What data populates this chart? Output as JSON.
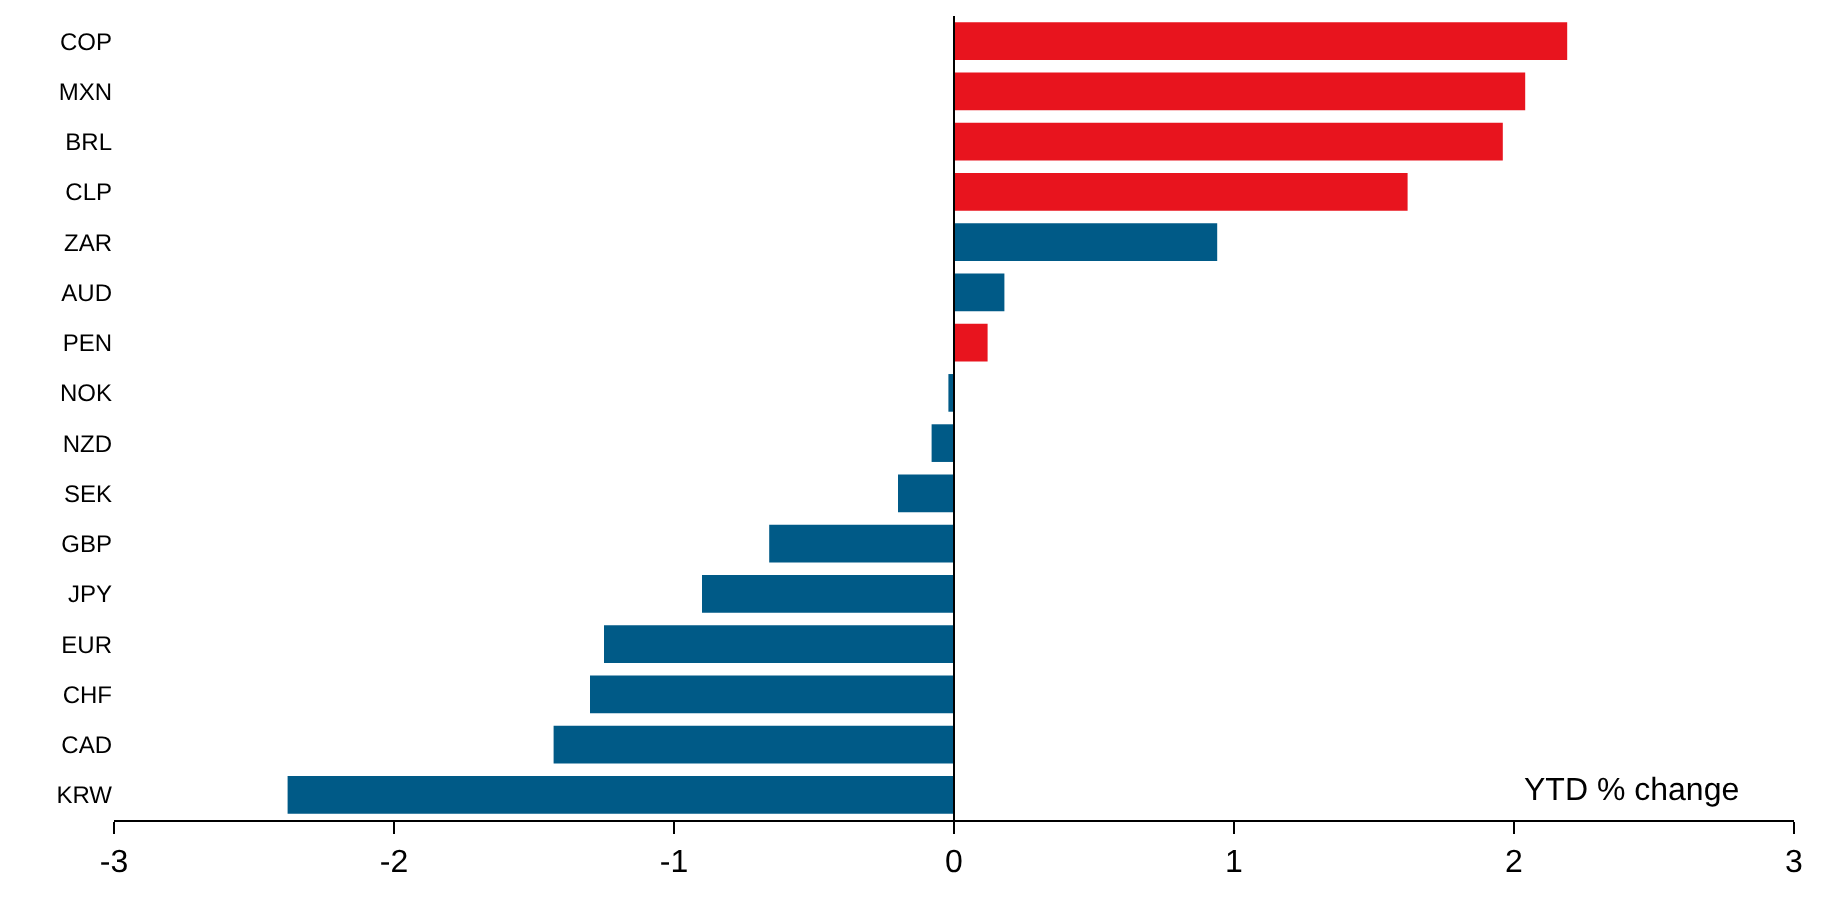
{
  "chart_data": {
    "type": "bar",
    "orientation": "horizontal",
    "xlabel": "YTD % change",
    "categories": [
      "COP",
      "MXN",
      "BRL",
      "CLP",
      "ZAR",
      "AUD",
      "PEN",
      "NOK",
      "NZD",
      "SEK",
      "GBP",
      "JPY",
      "EUR",
      "CHF",
      "CAD",
      "KRW"
    ],
    "values": [
      2.19,
      2.04,
      1.96,
      1.62,
      0.94,
      0.18,
      0.12,
      -0.02,
      -0.08,
      -0.2,
      -0.66,
      -0.9,
      -1.25,
      -1.3,
      -1.43,
      -2.38
    ],
    "colors": [
      "#e8141e",
      "#e8141e",
      "#e8141e",
      "#e8141e",
      "#005a87",
      "#005a87",
      "#e8141e",
      "#005a87",
      "#005a87",
      "#005a87",
      "#005a87",
      "#005a87",
      "#005a87",
      "#005a87",
      "#005a87",
      "#005a87"
    ],
    "xlim": [
      -3,
      3
    ],
    "xticks": [
      -3,
      -2,
      -1,
      0,
      1,
      2,
      3
    ],
    "ref_lines": [
      {
        "axis": "x",
        "value": 0,
        "color": "#000000"
      }
    ]
  }
}
